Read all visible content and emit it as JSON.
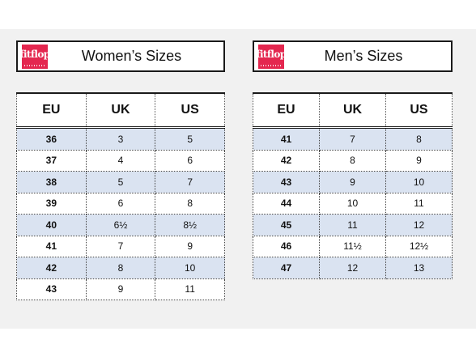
{
  "women": {
    "logo": "fitflop",
    "title": "Women’s Sizes",
    "headers": [
      "EU",
      "UK",
      "US"
    ],
    "rows": [
      [
        "36",
        "3",
        "5"
      ],
      [
        "37",
        "4",
        "6"
      ],
      [
        "38",
        "5",
        "7"
      ],
      [
        "39",
        "6",
        "8"
      ],
      [
        "40",
        "6½",
        "8½"
      ],
      [
        "41",
        "7",
        "9"
      ],
      [
        "42",
        "8",
        "10"
      ],
      [
        "43",
        "9",
        "11"
      ]
    ]
  },
  "men": {
    "logo": "fitflop",
    "title": "Men’s Sizes",
    "headers": [
      "EU",
      "UK",
      "US"
    ],
    "rows": [
      [
        "41",
        "7",
        "8"
      ],
      [
        "42",
        "8",
        "9"
      ],
      [
        "43",
        "9",
        "10"
      ],
      [
        "44",
        "10",
        "11"
      ],
      [
        "45",
        "11",
        "12"
      ],
      [
        "46",
        "11½",
        "12½"
      ],
      [
        "47",
        "12",
        "13"
      ]
    ]
  },
  "colors": {
    "brand": "#e4274f",
    "row_shade": "#dae3f1",
    "panel_background": "#f1f1f1"
  }
}
